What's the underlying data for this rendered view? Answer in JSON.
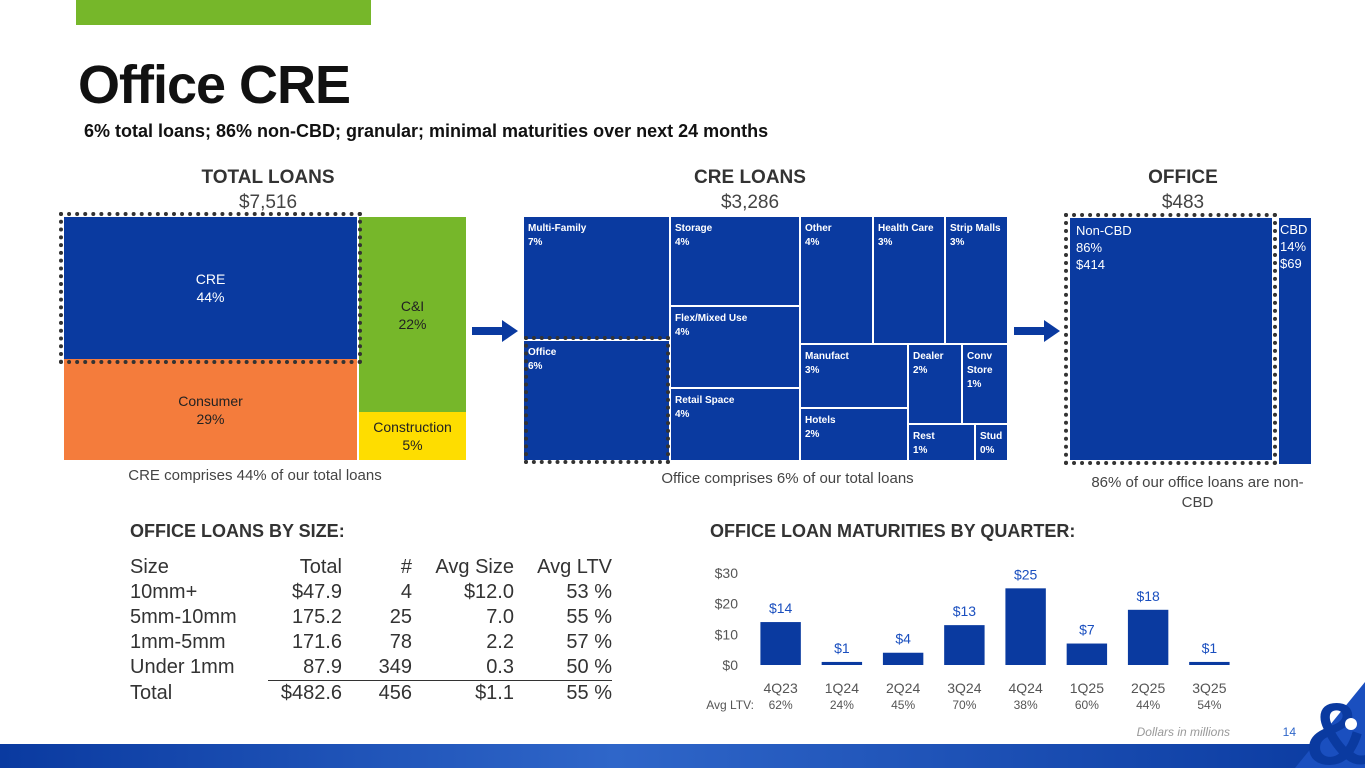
{
  "header": {
    "title": "Office CRE",
    "subtitle": "6% total loans; 86% non-CBD; granular; minimal maturities over next 24 months"
  },
  "total_loans": {
    "heading": "TOTAL LOANS",
    "value": "$7,516",
    "cre": {
      "label": "CRE",
      "pct": "44%"
    },
    "ci": {
      "label": "C&I",
      "pct": "22%"
    },
    "consumer": {
      "label": "Consumer",
      "pct": "29%"
    },
    "construction": {
      "label": "Construction",
      "pct": "5%"
    },
    "caption": "CRE comprises 44% of our total loans"
  },
  "cre_loans": {
    "heading": "CRE LOANS",
    "value": "$3,286",
    "items": [
      {
        "label": "Multi-Family",
        "pct": "7%"
      },
      {
        "label": "Storage",
        "pct": "4%"
      },
      {
        "label": "Other",
        "pct": "4%"
      },
      {
        "label": "Health Care",
        "pct": "3%"
      },
      {
        "label": "Strip Malls",
        "pct": "3%"
      },
      {
        "label": "Flex/Mixed Use",
        "pct": "4%"
      },
      {
        "label": "Office",
        "pct": "6%"
      },
      {
        "label": "Manufact",
        "pct": "3%"
      },
      {
        "label": "Dealer",
        "pct": "2%"
      },
      {
        "label": "Conv Store",
        "pct": "1%"
      },
      {
        "label": "Retail Space",
        "pct": "4%"
      },
      {
        "label": "Hotels",
        "pct": "2%"
      },
      {
        "label": "Rest",
        "pct": "1%"
      },
      {
        "label": "Stud",
        "pct": "0%"
      }
    ],
    "caption": "Office comprises 6% of our total loans"
  },
  "office": {
    "heading": "OFFICE",
    "value": "$483",
    "noncbd": {
      "label": "Non-CBD",
      "pct": "86%",
      "amount": "$414"
    },
    "cbd": {
      "label": "CBD",
      "pct": "14%",
      "amount": "$69"
    },
    "caption": "86% of our office loans are non-CBD"
  },
  "size_table": {
    "heading": "OFFICE LOANS BY SIZE:",
    "columns": [
      "Size",
      "Total",
      "#",
      "Avg Size",
      "Avg LTV"
    ],
    "rows": [
      [
        "10mm+",
        "$47.9",
        "4",
        "$12.0",
        "53 %"
      ],
      [
        "5mm-10mm",
        "175.2",
        "25",
        "7.0",
        "55 %"
      ],
      [
        "1mm-5mm",
        "171.6",
        "78",
        "2.2",
        "57 %"
      ],
      [
        "Under 1mm",
        "87.9",
        "349",
        "0.3",
        "50 %"
      ],
      [
        "Total",
        "$482.6",
        "456",
        "$1.1",
        "55 %"
      ]
    ]
  },
  "chart_data": {
    "type": "bar",
    "title": "OFFICE LOAN MATURITIES BY QUARTER:",
    "categories": [
      "4Q23",
      "1Q24",
      "2Q24",
      "3Q24",
      "4Q24",
      "1Q25",
      "2Q25",
      "3Q25"
    ],
    "values": [
      14,
      1,
      4,
      13,
      25,
      7,
      18,
      1
    ],
    "value_labels": [
      "$14",
      "$1",
      "$4",
      "$13",
      "$25",
      "$7",
      "$18",
      "$1"
    ],
    "yticks": [
      0,
      10,
      20,
      30
    ],
    "ytick_labels": [
      "$0",
      "$10",
      "$20",
      "$30"
    ],
    "ylim": [
      0,
      30
    ],
    "ltv_label": "Avg LTV:",
    "ltv": [
      "62%",
      "24%",
      "45%",
      "70%",
      "38%",
      "60%",
      "44%",
      "54%"
    ],
    "bar_color": "#0a3aa0"
  },
  "footer": {
    "note": "Dollars in millions",
    "page": "14"
  },
  "colors": {
    "blue": "#0a3aa0",
    "green": "#76b72a",
    "orange": "#f47c3c",
    "yellow": "#fedd00"
  }
}
